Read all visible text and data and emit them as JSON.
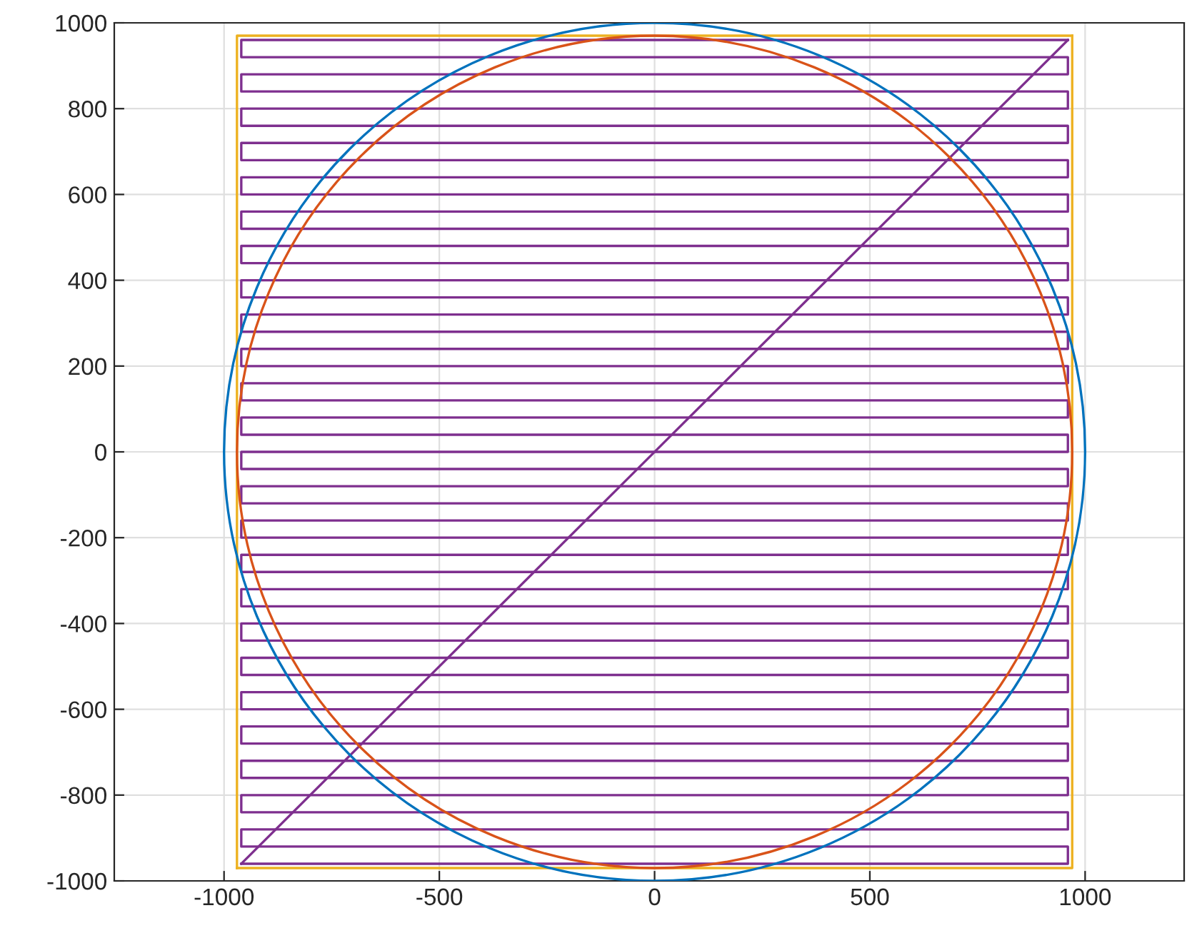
{
  "chart_data": {
    "type": "line",
    "xlim": [
      -1255,
      1230
    ],
    "ylim": [
      -1000,
      1000
    ],
    "xticks": [
      -1000,
      -500,
      0,
      500,
      1000
    ],
    "yticks": [
      -1000,
      -800,
      -600,
      -400,
      -200,
      0,
      200,
      400,
      600,
      800,
      1000
    ],
    "grid": true,
    "line_style": "solid",
    "series": [
      {
        "color": "#edb120",
        "x": [
          -970,
          970,
          970
        ],
        "values": [
          -970,
          -970,
          970
        ]
      },
      {
        "color": "#edb120",
        "x": [
          970,
          -970,
          -970
        ],
        "values": [
          970,
          970,
          -970
        ]
      },
      {
        "color": "#7e2f8e",
        "x": [
          -960,
          960,
          960,
          -960,
          -960,
          960,
          960,
          -960,
          -960,
          960,
          960,
          -960,
          -960,
          960,
          960,
          -960,
          -960,
          960,
          960,
          -960,
          -960,
          960,
          960,
          -960,
          -960,
          960,
          960,
          -960,
          -960,
          960,
          960,
          -960,
          -960,
          960,
          960,
          -960,
          -960,
          960,
          960,
          -960,
          -960,
          960,
          960,
          -960,
          -960,
          960,
          960,
          -960,
          -960,
          960,
          960,
          -960,
          -960,
          960,
          960,
          -960,
          -960,
          960,
          960,
          -960,
          -960,
          960,
          960,
          -960,
          -960,
          960,
          960,
          -960,
          -960,
          960,
          960,
          -960,
          -960,
          960,
          960,
          -960,
          -960,
          960,
          960,
          -960,
          -960,
          960,
          960,
          -960,
          -960,
          960,
          960,
          -960,
          -960,
          960,
          960,
          -960,
          -960,
          960,
          960,
          -960,
          -960,
          960
        ],
        "values": [
          -960,
          -960,
          -920,
          -920,
          -880,
          -880,
          -840,
          -840,
          -800,
          -800,
          -760,
          -760,
          -720,
          -720,
          -680,
          -680,
          -640,
          -640,
          -600,
          -600,
          -560,
          -560,
          -520,
          -520,
          -480,
          -480,
          -440,
          -440,
          -400,
          -400,
          -360,
          -360,
          -320,
          -320,
          -280,
          -280,
          -240,
          -240,
          -200,
          -200,
          -160,
          -160,
          -120,
          -120,
          -80,
          -80,
          -40,
          -40,
          0,
          0,
          40,
          40,
          80,
          80,
          120,
          120,
          160,
          160,
          200,
          200,
          240,
          240,
          280,
          280,
          320,
          320,
          360,
          360,
          400,
          400,
          440,
          440,
          480,
          480,
          520,
          520,
          560,
          560,
          600,
          600,
          640,
          640,
          680,
          680,
          720,
          720,
          760,
          760,
          800,
          800,
          840,
          840,
          880,
          880,
          920,
          920,
          960,
          960
        ]
      },
      {
        "color": "#7e2f8e",
        "x": [
          960,
          -960
        ],
        "values": [
          960,
          -960
        ]
      }
    ]
  }
}
